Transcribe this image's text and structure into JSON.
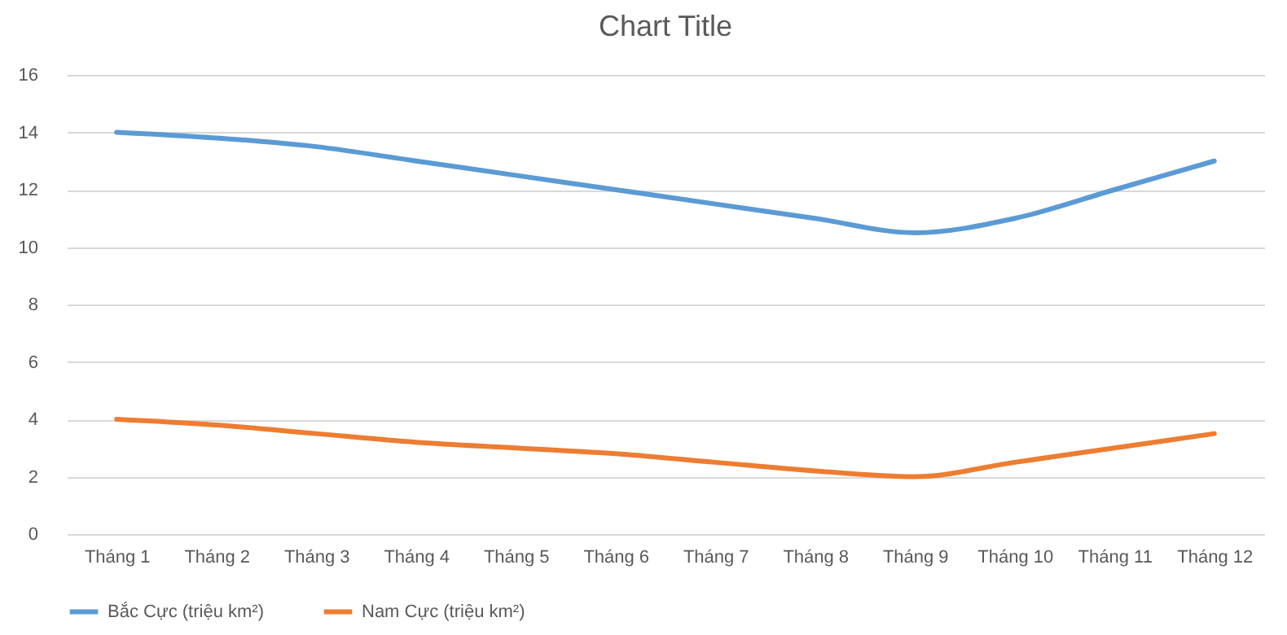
{
  "chart_data": {
    "type": "line",
    "title": "Chart Title",
    "categories": [
      "Tháng 1",
      "Tháng 2",
      "Tháng 3",
      "Tháng 4",
      "Tháng 5",
      "Tháng 6",
      "Tháng 7",
      "Tháng 8",
      "Tháng 9",
      "Tháng 10",
      "Tháng 11",
      "Tháng 12"
    ],
    "series": [
      {
        "name": "Bắc Cực (triệu km²)",
        "color": "#5b9bd5",
        "values": [
          14,
          13.8,
          13.5,
          13,
          12.5,
          12,
          11.5,
          11,
          10.5,
          11,
          12,
          13
        ]
      },
      {
        "name": "Nam Cực (triệu km²)",
        "color": "#ed7d31",
        "values": [
          4,
          3.8,
          3.5,
          3.2,
          3,
          2.8,
          2.5,
          2.2,
          2,
          2.5,
          3,
          3.5
        ]
      }
    ],
    "ylim": [
      0,
      16
    ],
    "yticks": [
      0,
      2,
      4,
      6,
      8,
      10,
      12,
      14,
      16
    ],
    "grid": "y",
    "legend": "bottom",
    "marker": "none",
    "line_style": "solid"
  }
}
